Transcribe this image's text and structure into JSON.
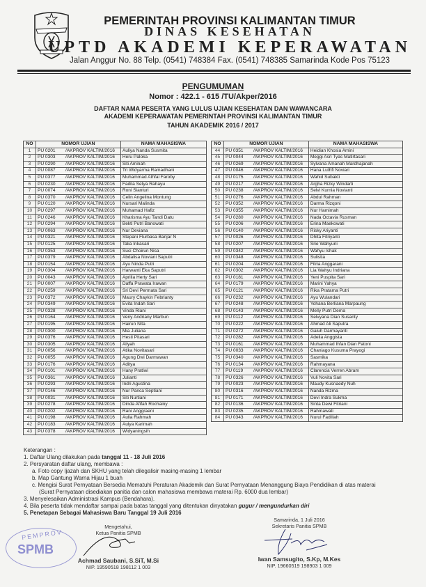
{
  "letterhead": {
    "line1": "PEMERINTAH PROVINSI KALIMANTAN TIMUR",
    "line2": "DINAS KESEHATAN",
    "line3": "UPTD AKADEMI KEPERAWATAN",
    "address": "Jalan Anggur No. 88 Telp. (0541) 748384 Fax. (0541) 748385 Samarinda Kode Pos 75123",
    "logo": "kalimantan-timur-emblem"
  },
  "announcement": {
    "title": "PENGUMUMAN",
    "number": "Nomor : 422.1 - 615 /TU/Akper/2016",
    "subtitle1": "DAFTAR NAMA PESERTA YANG LULUS UJIAN KESEHATAN DAN WAWANCARA",
    "subtitle2": "AKADEMI KEPERAWATAN PEMERINTAH PROVINSI KALIMANTAN TIMUR",
    "subtitle3": "TAHUN AKADEMIK 2016 / 2017"
  },
  "table": {
    "headers": [
      "NO",
      "NOMOR UJIAN",
      "NAMA MAHASISWA"
    ],
    "suffix": "/AKPROV KALTIM/2016",
    "rows": [
      [
        "1",
        "PU 0201",
        "Auliya Nanda Susmita"
      ],
      [
        "2",
        "PU 0303",
        "Heru Paloka"
      ],
      [
        "3",
        "PU 0290",
        "Siti Aminah"
      ],
      [
        "4",
        "PU 0087",
        "Tri Widyarma Ramadhani"
      ],
      [
        "5",
        "PU 0377",
        "Muhammad Athfal Faroby"
      ],
      [
        "6",
        "PU 0230",
        "Fadila Setya Rahayu"
      ],
      [
        "7",
        "PU 0074",
        "Roni Sianturi"
      ],
      [
        "8",
        "PU 0370",
        "Celin Angelina Montung"
      ],
      [
        "9",
        "PU 0120",
        "Nursari Malinda"
      ],
      [
        "10",
        "PU 0297",
        "Muhamad Hafiz"
      ],
      [
        "11",
        "PU 0246",
        "Kharisma Ayu Tandi Datu"
      ],
      [
        "12",
        "PU 0294",
        "Bekti Putri Banowati"
      ],
      [
        "13",
        "PU 0063",
        "Nur Deviana"
      ],
      [
        "14",
        "PU 0321",
        "Stepani Flurbasa Banjar N"
      ],
      [
        "15",
        "PU 0125",
        "Talia Inkasari"
      ],
      [
        "16",
        "PU 0353",
        "Suci Choirun Nisa"
      ],
      [
        "17",
        "PU 0379",
        "Abdalisa Noviani Saputri"
      ],
      [
        "18",
        "PU 0154",
        "Ayu Ninda Putri"
      ],
      [
        "19",
        "PU 0304",
        "Harwanti Eka Saputri"
      ],
      [
        "20",
        "PU 0043",
        "Aprilia Herty Sari"
      ],
      [
        "21",
        "PU 0007",
        "Daffa Prawata Irawan"
      ],
      [
        "22",
        "PU 0259",
        "Sri Devi Permata Sari"
      ],
      [
        "23",
        "PU 0372",
        "Maury Chaykin Febrianty"
      ],
      [
        "24",
        "PU 0349",
        "Evita Indah Sari"
      ],
      [
        "25",
        "PU 0328",
        "Vinda Riani"
      ],
      [
        "26",
        "PU 0164",
        "Veny Andriany Marbun"
      ],
      [
        "27",
        "PU 0195",
        "Hairun Nita"
      ],
      [
        "28",
        "PU 0300",
        "Mia Juliana"
      ],
      [
        "29",
        "PU 0376",
        "Hesti Pitasari"
      ],
      [
        "30",
        "PU 0305",
        "Aliyah"
      ],
      [
        "31",
        "PU 0056",
        "Atika Novitasari"
      ],
      [
        "32",
        "PU 0055",
        "Agung Dwi Darmawan"
      ],
      [
        "33",
        "PU 0176",
        "Aditya"
      ],
      [
        "34",
        "PU 0101",
        "Hany Pratiwi"
      ],
      [
        "35",
        "PU 0361",
        "Julianti"
      ],
      [
        "36",
        "PU 0293",
        "Indri Agustina"
      ],
      [
        "37",
        "PU 0146",
        "Nur Panca Septiani"
      ],
      [
        "38",
        "PU 0031",
        "Siti Nurtiani"
      ],
      [
        "39",
        "PU 0278",
        "Dinda Afifah Rochainy"
      ],
      [
        "40",
        "PU 0202",
        "Rani Anggraeni"
      ],
      [
        "41",
        "PU 0198",
        "Aulia Rahmah"
      ],
      [
        "42",
        "PU 0183",
        "Aulya Karimah"
      ],
      [
        "43",
        "PU 0378",
        "Widyaningsih"
      ],
      [
        "44",
        "PU 0351",
        "Heidian Khosia Amini"
      ],
      [
        "45",
        "PU 0044",
        "Meggi Asri Tyas Matirtasari"
      ],
      [
        "46",
        "PU 0269",
        "Sylvana Amanah Mardhajanah"
      ],
      [
        "47",
        "PU 0046",
        "Hana Luthfi Noviari"
      ],
      [
        "48",
        "PU 0175",
        "Wahid Subakti"
      ],
      [
        "49",
        "PU 0217",
        "Argha Rizky Windarti"
      ],
      [
        "50",
        "PU 0238",
        "Selvi Kurnia Novianti"
      ],
      [
        "51",
        "PU 0276",
        "Abdul Rahman"
      ],
      [
        "52",
        "PU 0352",
        "Darma Rizqoni"
      ],
      [
        "53",
        "PU 0355",
        "Nur Hamimah"
      ],
      [
        "54",
        "PU 0280",
        "Nada Octavia Rusman"
      ],
      [
        "55",
        "PU 0206",
        "Erina Maekowati"
      ],
      [
        "56",
        "PU 0140",
        "Risky Ariyanti"
      ],
      [
        "57",
        "PU 0026",
        "Dhita Fitriyanti"
      ],
      [
        "58",
        "PU 0207",
        "Srie Wahyuni"
      ],
      [
        "59",
        "PU 0342",
        "Wahyu Ishak"
      ],
      [
        "60",
        "PU 0348",
        "Sulistia"
      ],
      [
        "61",
        "PU 0204",
        "Fitria Anggarani"
      ],
      [
        "62",
        "PU 0302",
        "Lia Wahyu Indriana"
      ],
      [
        "63",
        "PU 0181",
        "Yeni Puspita Sari"
      ],
      [
        "64",
        "PU 0179",
        "Marini Yahya"
      ],
      [
        "65",
        "PU 0121",
        "Rika Pratama Putri"
      ],
      [
        "66",
        "PU 0232",
        "Ayu Wulandari"
      ],
      [
        "67",
        "PU 0248",
        "Yohana Berliana Marpaung"
      ],
      [
        "68",
        "PU 0143",
        "Melly Putri Dema"
      ],
      [
        "69",
        "PU 0112",
        "Selvyana Dian Susanty"
      ],
      [
        "70",
        "PU 0222",
        "Ahmad Ali Saputra"
      ],
      [
        "71",
        "PU 0272",
        "Galuh Darmayanti"
      ],
      [
        "72",
        "PU 0282",
        "Adelia Anggista"
      ],
      [
        "73",
        "PU 0161",
        "Muhammad Ihfan Dian Fatoni"
      ],
      [
        "74",
        "PU 0033",
        "Chaniago Kusuma Prayogi"
      ],
      [
        "75",
        "PU 0340",
        "Sasmika"
      ],
      [
        "76",
        "PU 0134",
        "Rahmayana"
      ],
      [
        "77",
        "PU 0119",
        "Clarencia Verren Abram"
      ],
      [
        "78",
        "PU 0326",
        "Vuli Novita Sari"
      ],
      [
        "79",
        "PU 0023",
        "Maudy Kusnaedy Nuh"
      ],
      [
        "80",
        "PU 0316",
        "Nanda Rizma"
      ],
      [
        "81",
        "PU 0171",
        "Devi Indra Sukma"
      ],
      [
        "82",
        "PU 0136",
        "Sinta Dewi Fitriani"
      ],
      [
        "83",
        "PU 0235",
        "Rahmawati"
      ],
      [
        "84",
        "PU 0343",
        "Nurul Fadillah"
      ]
    ]
  },
  "notes": {
    "title": "Keterangan :",
    "n1_pre": "1. Daftar Ulang dilakukan pada ",
    "n1_bold": "tanggal 11 -  18  Juli   2016",
    "n2": "2. Persyaratan daftar ulang, membawa :",
    "n2a": "a. Foto copy Ijazah dan SKHU yang telah dilegalisir masing-masing 1 lembar",
    "n2b": "b. Map Gantung Warna Hijau 1 buah",
    "n2c": "c. Mengisi Surat Pernyataan Bersedia Mematuhi Peraturan Akademik dan Surat Pernyataan Menanggung Biaya Pendidikan di atas materai",
    "n2c2": "(Surat Pernyataan disediakan panitia dan calon mahasiswa membawa materai Rp. 6000 dua lembar)",
    "n3": "3. Menyelesaikan Administrasi Kampus (Bendahara).",
    "n4_pre": "4. Bila peserta tidak mendaftar sampai pada batas tanggal yang ditentukan dinyatakan ",
    "n4_bold": "gugur / mengundurkan diri",
    "n5": "5. Penetapan  Sebagai  Mahasiswa Baru Tanggal 19 Juli 2016"
  },
  "signatures": {
    "left": {
      "line1": "Mengetahui,",
      "line2": "Ketua  Panitia SPMB",
      "name": "Achmad Saubani, S.SiT, M.Si",
      "nip": "NIP. 19590518 198112 1 003"
    },
    "right": {
      "line1": "Samarinda, 1 Juli 2016",
      "line2": "Sekretaris Panitia SPMB",
      "name": "Iwan Samsugito, S.Kp, M.Kes",
      "nip": "NIP. 19660519 198903 1 009"
    },
    "stamp": {
      "top": "PEMPROV",
      "center": "SPMB"
    }
  }
}
